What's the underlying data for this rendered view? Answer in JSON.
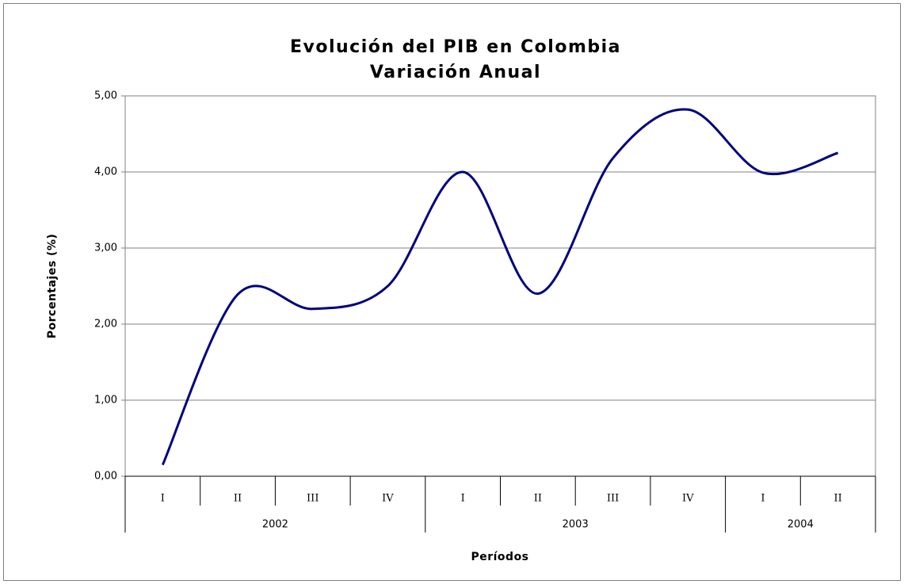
{
  "chart_data": {
    "type": "line",
    "title": "Evolución del PIB en Colombia",
    "subtitle": "Variación Anual",
    "y_label": "Porcentajes (%)",
    "x_label": "Períodos",
    "groups": [
      {
        "name": "2002",
        "categories": [
          "I",
          "II",
          "III",
          "IV"
        ]
      },
      {
        "name": "2003",
        "categories": [
          "I",
          "II",
          "III",
          "IV"
        ]
      },
      {
        "name": "2004",
        "categories": [
          "I",
          "II"
        ]
      }
    ],
    "values": [
      0.15,
      2.39,
      2.2,
      2.5,
      4.0,
      2.4,
      4.18,
      4.82,
      3.99,
      4.25
    ],
    "color": "#000080",
    "smooth": true,
    "ylim": [
      0,
      5
    ],
    "yticks": [
      {
        "value": 0,
        "label": "0,00"
      },
      {
        "value": 1,
        "label": "1,00"
      },
      {
        "value": 2,
        "label": "2,00"
      },
      {
        "value": 3,
        "label": "3,00"
      },
      {
        "value": 4,
        "label": "4,00"
      },
      {
        "value": 5,
        "label": "5,00"
      }
    ],
    "grid": true
  }
}
